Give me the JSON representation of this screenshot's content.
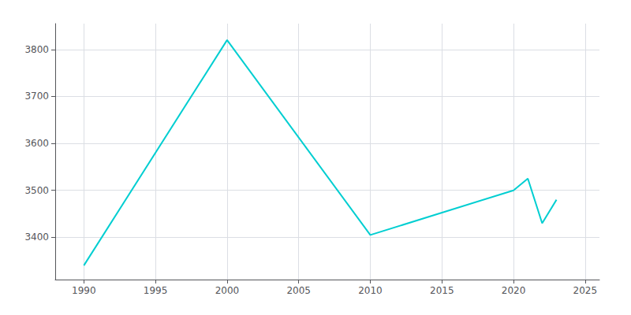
{
  "chart_data": {
    "type": "line",
    "x": [
      1990,
      2000,
      2010,
      2020,
      2021,
      2022,
      2023
    ],
    "values": [
      3340,
      3820,
      3405,
      3500,
      3525,
      3430,
      3480
    ],
    "color": "#00CED1",
    "xlim": [
      1988,
      2026
    ],
    "ylim": [
      3310,
      3855
    ],
    "xticks": [
      1990,
      1995,
      2000,
      2005,
      2010,
      2015,
      2020,
      2025
    ],
    "yticks": [
      3400,
      3500,
      3600,
      3700,
      3800
    ],
    "grid": true
  }
}
